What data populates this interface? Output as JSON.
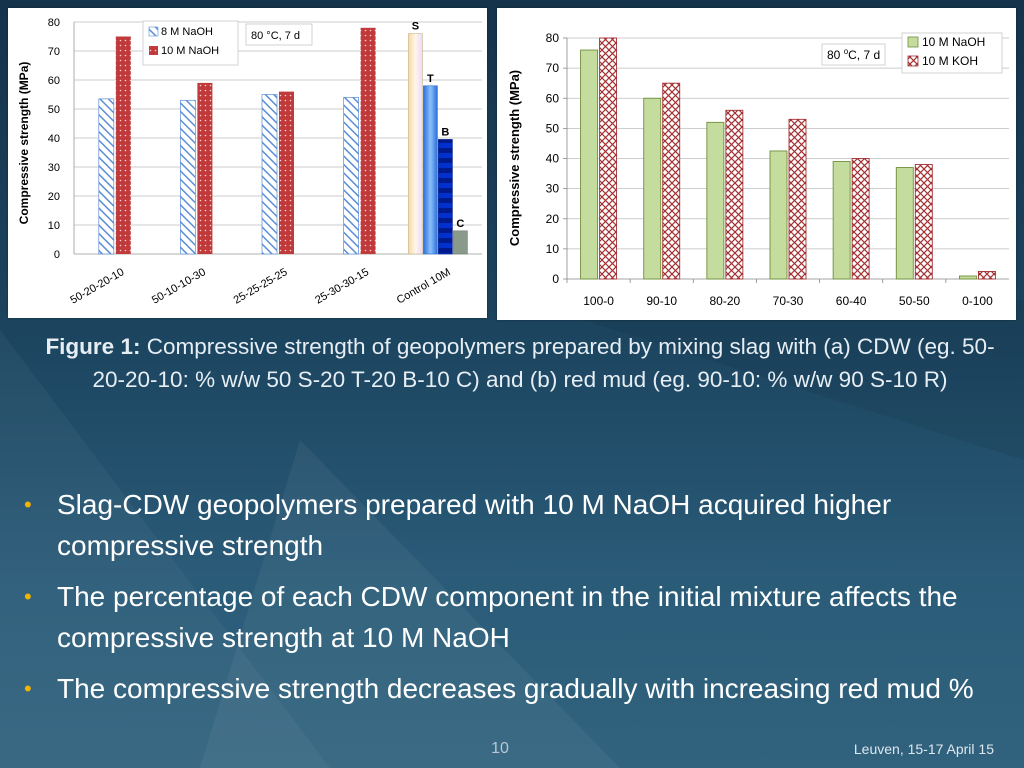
{
  "caption": {
    "lead": "Figure 1:",
    "text": "Compressive strength of geopolymers prepared by mixing slag with (a) CDW (eg. 50-20-20-10: % w/w 50 S-20 T-20 B-10 C) and (b) red mud (eg. 90-10: % w/w 90 S-10 R)"
  },
  "bullets": [
    "Slag-CDW geopolymers prepared with 10 M NaOH acquired higher compressive strength",
    "The percentage of each CDW component in the initial mixture affects the compressive strength at 10 M NaOH",
    "The compressive strength decreases gradually with increasing red mud %"
  ],
  "slide_number": "10",
  "footer_note": "Leuven, 15-17 April 15",
  "colors": {
    "naoh8": "#5b8ed6",
    "naoh10_red": "#c0393b",
    "green_fill": "#c4dc9e",
    "green_stroke": "#6f8f3a",
    "koh_stroke": "#a33033",
    "control_S": "#f5e9c8",
    "control_T": "#4d90e0",
    "control_B": "#00188a",
    "control_C": "#8a9a8a"
  },
  "chart_data": [
    {
      "type": "bar",
      "ylabel": "Compressive strength (MPa)",
      "ylim": [
        0,
        80
      ],
      "yticks": [
        0,
        10,
        20,
        30,
        40,
        50,
        60,
        70,
        80
      ],
      "categories": [
        "50-20-20-10",
        "50-10-10-30",
        "25-25-25-25",
        "25-30-30-15",
        "Control 10M"
      ],
      "series": [
        {
          "name": "8 M NaOH",
          "values": [
            53.5,
            53,
            55,
            54,
            null
          ]
        },
        {
          "name": "10 M NaOH",
          "values": [
            75,
            59,
            56,
            78,
            null
          ]
        }
      ],
      "control_bars": [
        {
          "label": "S",
          "value": 76
        },
        {
          "label": "T",
          "value": 58
        },
        {
          "label": "B",
          "value": 39.5
        },
        {
          "label": "C",
          "value": 8
        }
      ],
      "annotation": "80 °C, 7 d",
      "legend_position": "top-left"
    },
    {
      "type": "bar",
      "ylabel": "Compressive strength (MPa)",
      "ylim": [
        0,
        80
      ],
      "yticks": [
        0,
        10,
        20,
        30,
        40,
        50,
        60,
        70,
        80
      ],
      "categories": [
        "100-0",
        "90-10",
        "80-20",
        "70-30",
        "60-40",
        "50-50",
        "0-100"
      ],
      "series": [
        {
          "name": "10 M NaOH",
          "values": [
            76,
            60,
            52,
            42.5,
            39,
            37,
            1
          ]
        },
        {
          "name": "10 M KOH",
          "values": [
            80,
            65,
            56,
            53,
            40,
            38,
            2.5
          ]
        }
      ],
      "annotation_main": "80 ",
      "annotation_sup": "o",
      "annotation_rest": "C, 7 d",
      "legend_position": "top-right"
    }
  ]
}
